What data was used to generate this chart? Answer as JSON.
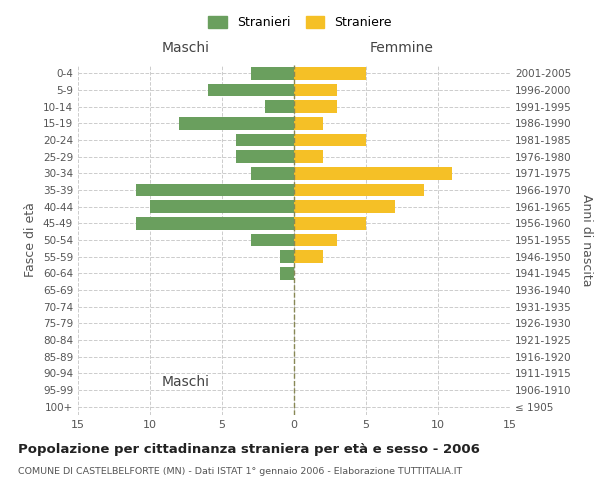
{
  "age_groups": [
    "100+",
    "95-99",
    "90-94",
    "85-89",
    "80-84",
    "75-79",
    "70-74",
    "65-69",
    "60-64",
    "55-59",
    "50-54",
    "45-49",
    "40-44",
    "35-39",
    "30-34",
    "25-29",
    "20-24",
    "15-19",
    "10-14",
    "5-9",
    "0-4"
  ],
  "birth_years": [
    "≤ 1905",
    "1906-1910",
    "1911-1915",
    "1916-1920",
    "1921-1925",
    "1926-1930",
    "1931-1935",
    "1936-1940",
    "1941-1945",
    "1946-1950",
    "1951-1955",
    "1956-1960",
    "1961-1965",
    "1966-1970",
    "1971-1975",
    "1976-1980",
    "1981-1985",
    "1986-1990",
    "1991-1995",
    "1996-2000",
    "2001-2005"
  ],
  "maschi": [
    0,
    0,
    0,
    0,
    0,
    0,
    0,
    0,
    1,
    1,
    3,
    11,
    10,
    11,
    3,
    4,
    4,
    8,
    2,
    6,
    3
  ],
  "femmine": [
    0,
    0,
    0,
    0,
    0,
    0,
    0,
    0,
    0,
    2,
    3,
    5,
    7,
    9,
    11,
    2,
    5,
    2,
    3,
    3,
    5
  ],
  "male_color": "#6a9f5e",
  "female_color": "#f5c026",
  "background_color": "#ffffff",
  "grid_color": "#cccccc",
  "title": "Popolazione per cittadinanza straniera per età e sesso - 2006",
  "subtitle": "COMUNE DI CASTELBELFORTE (MN) - Dati ISTAT 1° gennaio 2006 - Elaborazione TUTTITALIA.IT",
  "xlabel_left": "Maschi",
  "xlabel_right": "Femmine",
  "ylabel_left": "Fasce di età",
  "ylabel_right": "Anni di nascita",
  "legend_male": "Stranieri",
  "legend_female": "Straniere",
  "xlim": 15,
  "center_line_color": "#888855"
}
